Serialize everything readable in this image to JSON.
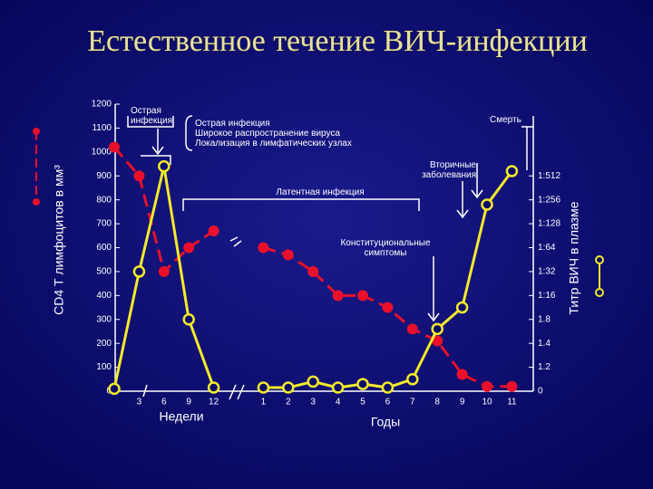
{
  "chart_data": {
    "type": "line",
    "title": "Естественное течение ВИЧ-инфекции",
    "y_label": "CD4 Т лимфоцитов в мм³",
    "y2_label": "Титр ВИЧ в плазме",
    "x_labels": [
      "Недели",
      "Годы"
    ],
    "categories": [
      null,
      "3",
      "6",
      "9",
      "12",
      null,
      "1",
      "2",
      "3",
      "4",
      "5",
      "6",
      "7",
      "8",
      "9",
      "10",
      "11"
    ],
    "series": [
      {
        "color": "#e8102a",
        "values": [
          1020,
          900,
          500,
          600,
          670,
          null,
          600,
          570,
          500,
          400,
          400,
          350,
          260,
          210,
          70,
          20,
          20
        ]
      },
      {
        "color": "#f2ea2a",
        "axis": "y2",
        "values": [
          0.1,
          5,
          9.4,
          3,
          0.15,
          null,
          0.15,
          0.15,
          0.4,
          0.15,
          0.3,
          0.15,
          0.5,
          2.6,
          3.5,
          7.8,
          9.2
        ]
      }
    ],
    "ylim": [
      0,
      1200
    ],
    "yticks": [
      0,
      100,
      200,
      300,
      400,
      500,
      600,
      700,
      800,
      900,
      1000,
      1100,
      1200
    ],
    "y2lim": [
      0,
      12
    ],
    "y2ticks": [
      0,
      {
        "value": 1,
        "label": "1.2"
      },
      {
        "value": 2,
        "label": "1.4"
      },
      {
        "value": 3,
        "label": "1.8"
      },
      {
        "value": 4,
        "label": "1:16"
      },
      {
        "value": 5,
        "label": "1:32"
      },
      {
        "value": 6,
        "label": "1:64"
      },
      {
        "value": 7,
        "label": "1:128"
      },
      {
        "value": 8,
        "label": "1:256"
      },
      {
        "value": 9,
        "label": "1:512"
      }
    ],
    "annotations": [
      {
        "lines": [
          "Острая",
          "инфекция"
        ]
      },
      {
        "lines": [
          "Острая инфекция",
          "Широкое распространение вируса",
          "Локализация в лимфатических узлах"
        ]
      },
      {
        "lines": [
          "Смерть"
        ]
      },
      {
        "lines": [
          "Вторичные",
          "заболевания"
        ]
      },
      {
        "lines": [
          "Латентная инфекция"
        ]
      },
      {
        "lines": [
          "Конституциональные",
          "симптомы"
        ]
      }
    ]
  }
}
